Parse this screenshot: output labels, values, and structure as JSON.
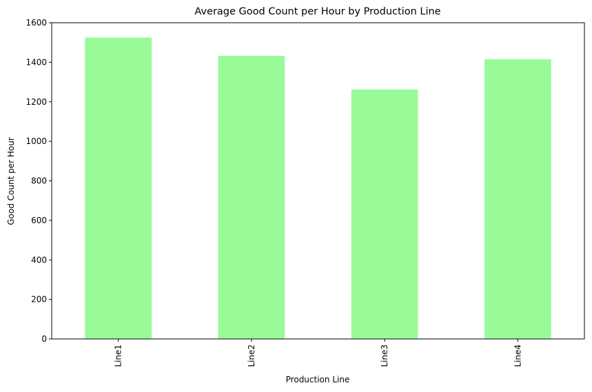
{
  "chart_data": {
    "type": "bar",
    "title": "Average Good Count per Hour by Production Line",
    "xlabel": "Production Line",
    "ylabel": "Good Count per Hour",
    "categories": [
      "Line1",
      "Line2",
      "Line3",
      "Line4"
    ],
    "values": [
      1525,
      1432,
      1262,
      1415
    ],
    "ylim": [
      0,
      1600
    ],
    "yticks": [
      0,
      200,
      400,
      600,
      800,
      1000,
      1200,
      1400,
      1600
    ],
    "grid": false,
    "legend": "none",
    "bar_color": "#98fb98"
  }
}
